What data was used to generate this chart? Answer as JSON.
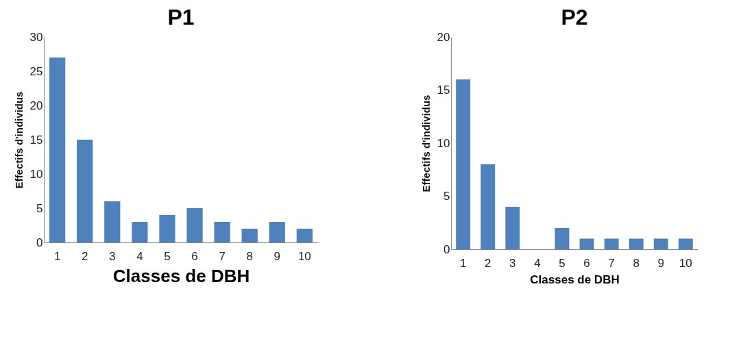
{
  "chart_data": [
    {
      "type": "bar",
      "title": "P1",
      "xlabel": "Classes de DBH",
      "ylabel": "Effectifs d'individus",
      "categories": [
        "1",
        "2",
        "3",
        "4",
        "5",
        "6",
        "7",
        "8",
        "9",
        "10"
      ],
      "values": [
        27,
        15,
        6,
        3,
        4,
        5,
        3,
        2,
        3,
        2
      ],
      "color": "#4f81bd",
      "ylim": [
        0,
        30
      ],
      "yticks": [
        0,
        5,
        10,
        15,
        20,
        25,
        30
      ]
    },
    {
      "type": "bar",
      "title": "P2",
      "xlabel": "Classes de DBH",
      "ylabel": "Effectifs d'individus",
      "categories": [
        "1",
        "2",
        "3",
        "4",
        "5",
        "6",
        "7",
        "8",
        "9",
        "10"
      ],
      "values": [
        16,
        8,
        4,
        0,
        2,
        1,
        1,
        1,
        1,
        1
      ],
      "color": "#4f81bd",
      "ylim": [
        0,
        20
      ],
      "yticks": [
        0,
        5,
        10,
        15,
        20
      ]
    }
  ]
}
